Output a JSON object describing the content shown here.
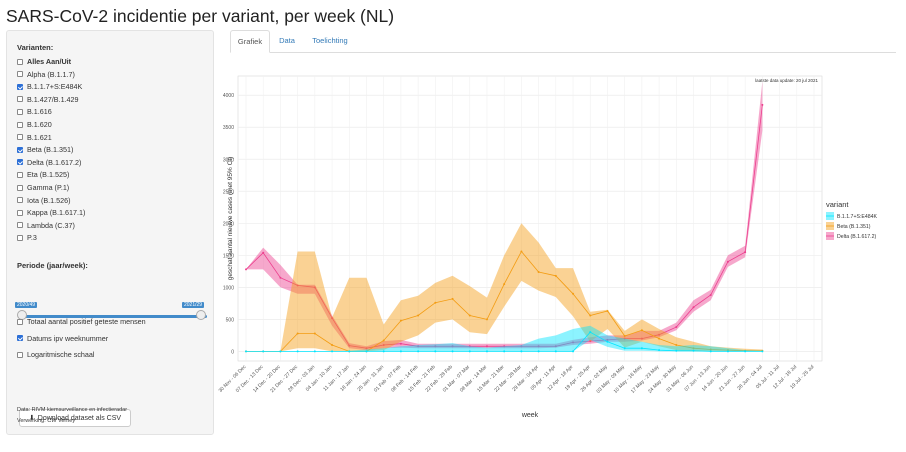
{
  "page": {
    "title": "SARS-CoV-2 incidentie per variant, per week (NL)"
  },
  "sidebar": {
    "variants_label": "Varianten:",
    "variants": [
      {
        "label": "Alles Aan/Uit",
        "checked": false,
        "bold": true
      },
      {
        "label": "Alpha (B.1.1.7)",
        "checked": false
      },
      {
        "label": "B.1.1.7+S:E484K",
        "checked": true
      },
      {
        "label": "B.1.427/B.1.429",
        "checked": false
      },
      {
        "label": "B.1.616",
        "checked": false
      },
      {
        "label": "B.1.620",
        "checked": false
      },
      {
        "label": "B.1.621",
        "checked": false
      },
      {
        "label": "Beta (B.1.351)",
        "checked": true
      },
      {
        "label": "Delta (B.1.617.2)",
        "checked": true
      },
      {
        "label": "Eta (B.1.525)",
        "checked": false
      },
      {
        "label": "Gamma (P.1)",
        "checked": false
      },
      {
        "label": "Iota (B.1.526)",
        "checked": false
      },
      {
        "label": "Kappa (B.1.617.1)",
        "checked": false
      },
      {
        "label": "Lambda (C.37)",
        "checked": false
      },
      {
        "label": "P.3",
        "checked": false
      }
    ],
    "period_label": "Periode (jaar/week):",
    "period_start": "2020/49",
    "period_end": "2021/29",
    "options": [
      {
        "label": "Totaal aantal positief geteste mensen",
        "checked": false
      },
      {
        "label": "Datums ipv weeknummer",
        "checked": true
      },
      {
        "label": "Logaritmische schaal",
        "checked": false
      }
    ],
    "download_label": "Download dataset als CSV",
    "download_icon": "download-icon",
    "footnote_data": "Data: RIVM kiemsurveillance en infectieradar",
    "footnote_processing": "Verwerking: CW Verhey"
  },
  "tabs": [
    {
      "label": "Grafiek",
      "active": true
    },
    {
      "label": "Data",
      "active": false
    },
    {
      "label": "Toelichting",
      "active": false
    }
  ],
  "chart_data": {
    "type": "area",
    "title": "",
    "annotation": "laatste data update: 20 jul 2021",
    "xlabel": "week",
    "ylabel": "geschat aantal nieuwe cases (met 95% CI)",
    "ylim": [
      -150,
      4300
    ],
    "yticks": [
      0,
      500,
      1000,
      1500,
      2000,
      2500,
      3000,
      3500,
      4000
    ],
    "categories": [
      "30 Nov - 06 Dec",
      "07 Dec - 13 Dec",
      "14 Dec - 20 Dec",
      "21 Dec - 27 Dec",
      "28 Dec - 03 Jan",
      "04 Jan - 10 Jan",
      "11 Jan - 17 Jan",
      "18 Jan - 24 Jan",
      "25 Jan - 31 Jan",
      "01 Feb - 07 Feb",
      "08 Feb - 14 Feb",
      "15 Feb - 21 Feb",
      "22 Feb - 28 Feb",
      "01 Mar - 07 Mar",
      "08 Mar - 14 Mar",
      "15 Mar - 21 Mar",
      "22 Mar - 28 Mar",
      "29 Mar - 04 Apr",
      "05 Apr - 11 Apr",
      "12 Apr - 18 Apr",
      "19 Apr - 25 Apr",
      "26 Apr - 02 May",
      "03 May - 09 May",
      "10 May - 16 May",
      "17 May - 23 May",
      "24 May - 30 May",
      "31 May - 06 Jun",
      "07 Jun - 13 Jun",
      "14 Jun - 20 Jun",
      "21 Jun - 27 Jun",
      "28 Jun - 04 Jul",
      "05 Jul - 11 Jul",
      "12 Jul - 18 Jul",
      "19 Jul - 25 Jul"
    ],
    "legend_title": "variant",
    "legend_position": "right",
    "series": [
      {
        "name": "B.1.1.7+S:E484K",
        "color": "#00e5ff",
        "values": [
          0,
          0,
          0,
          0,
          0,
          0,
          0,
          0,
          0,
          0,
          0,
          0,
          0,
          0,
          0,
          0,
          0,
          0,
          0,
          0,
          300,
          150,
          50,
          50,
          20,
          10,
          10,
          0,
          0,
          0,
          0,
          null,
          null,
          null
        ],
        "lower": [
          0,
          0,
          0,
          0,
          0,
          0,
          0,
          0,
          0,
          0,
          0,
          0,
          0,
          0,
          0,
          0,
          0,
          0,
          0,
          0,
          180,
          70,
          10,
          10,
          0,
          0,
          0,
          0,
          0,
          0,
          0,
          null,
          null,
          null
        ],
        "upper": [
          0,
          0,
          0,
          0,
          0,
          0,
          10,
          30,
          50,
          80,
          100,
          110,
          130,
          80,
          60,
          80,
          100,
          200,
          250,
          350,
          400,
          250,
          200,
          150,
          100,
          80,
          100,
          80,
          50,
          20,
          10,
          null,
          null,
          null
        ]
      },
      {
        "name": "Beta (B.1.351)",
        "color": "#f39c12",
        "values": [
          0,
          0,
          0,
          280,
          280,
          100,
          0,
          0,
          170,
          480,
          560,
          760,
          820,
          560,
          500,
          1050,
          1560,
          1240,
          1180,
          900,
          560,
          630,
          240,
          330,
          200,
          100,
          50,
          30,
          20,
          10,
          10,
          null,
          null,
          null
        ],
        "lower": [
          0,
          0,
          0,
          50,
          50,
          0,
          0,
          0,
          20,
          150,
          250,
          450,
          500,
          300,
          270,
          700,
          1100,
          950,
          850,
          550,
          150,
          350,
          60,
          150,
          80,
          20,
          0,
          0,
          0,
          0,
          0,
          null,
          null,
          null
        ],
        "upper": [
          0,
          0,
          0,
          1560,
          1560,
          530,
          1150,
          1150,
          420,
          800,
          870,
          1070,
          1180,
          1020,
          840,
          1500,
          2000,
          1700,
          1300,
          1300,
          620,
          650,
          320,
          500,
          350,
          220,
          150,
          80,
          60,
          40,
          30,
          null,
          null,
          null
        ]
      },
      {
        "name": "Delta (B.1.617.2)",
        "color": "#ec3f8e",
        "values": [
          1280,
          1540,
          1150,
          1030,
          1000,
          520,
          90,
          50,
          100,
          120,
          80,
          80,
          80,
          80,
          80,
          80,
          80,
          80,
          80,
          140,
          160,
          180,
          200,
          200,
          260,
          380,
          690,
          880,
          1400,
          1550,
          3850,
          null,
          null,
          null
        ],
        "lower": [
          1280,
          1280,
          1000,
          900,
          900,
          400,
          50,
          20,
          50,
          60,
          50,
          50,
          50,
          50,
          50,
          50,
          50,
          50,
          60,
          100,
          120,
          150,
          150,
          170,
          220,
          330,
          620,
          800,
          1320,
          1470,
          3450,
          null,
          null,
          null
        ],
        "upper": [
          1280,
          1620,
          1350,
          1040,
          1040,
          560,
          130,
          80,
          160,
          180,
          120,
          120,
          120,
          120,
          120,
          120,
          120,
          120,
          120,
          180,
          220,
          250,
          250,
          320,
          320,
          450,
          800,
          960,
          1500,
          1650,
          4220,
          null,
          null,
          null
        ]
      }
    ]
  }
}
